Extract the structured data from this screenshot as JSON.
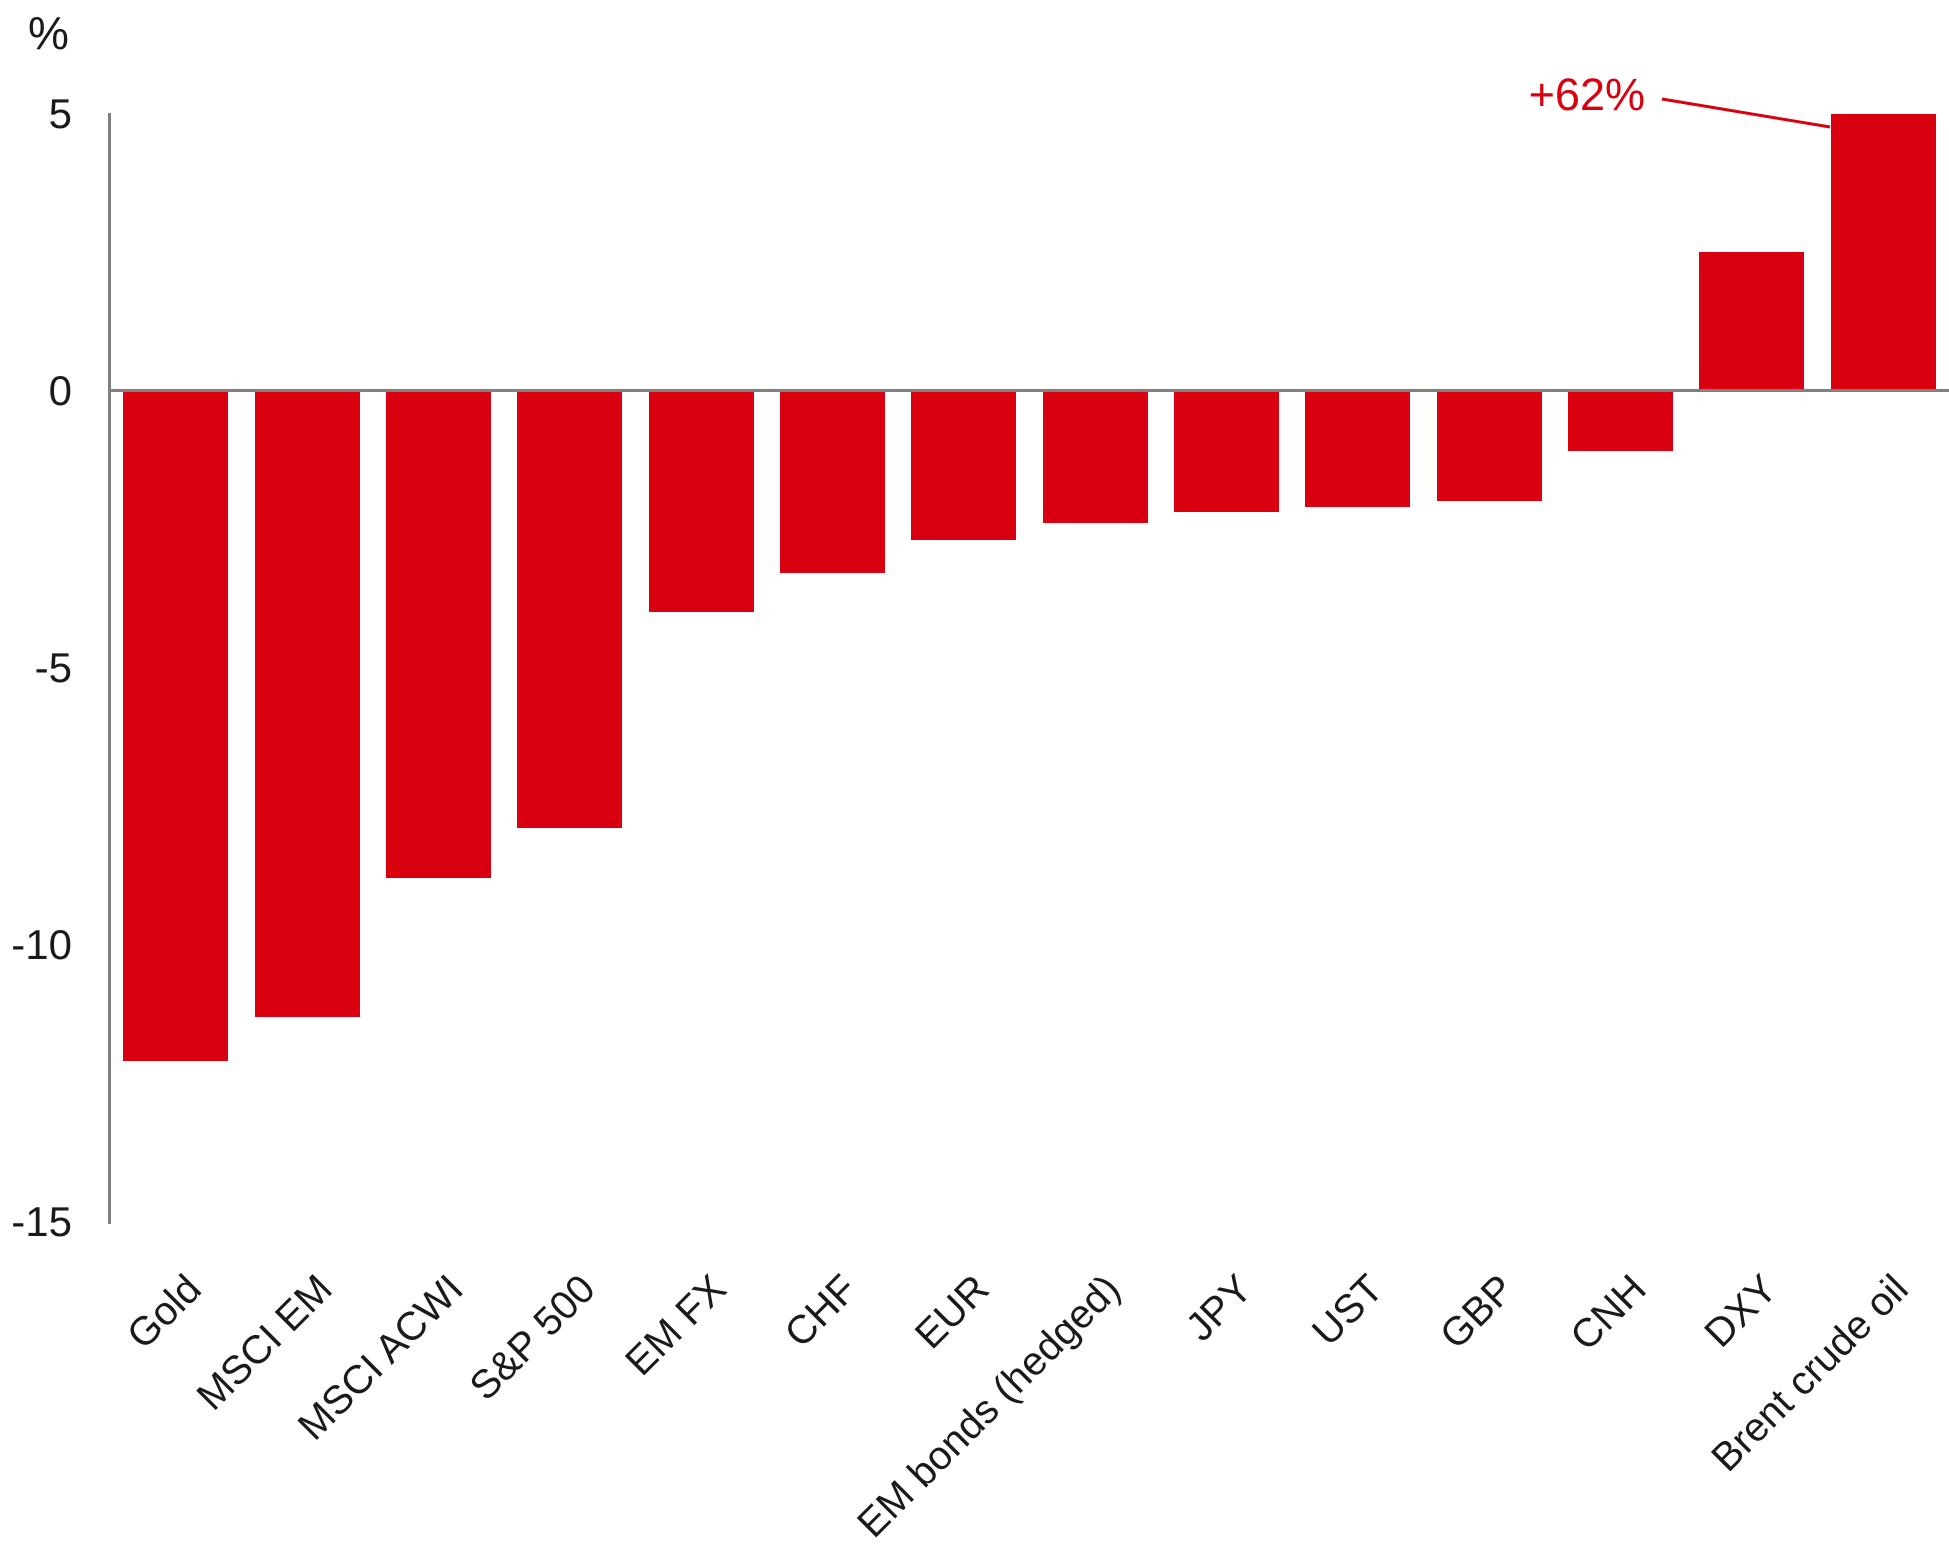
{
  "chart_data": {
    "type": "bar",
    "title": "",
    "unit_label": "%",
    "categories": [
      "Gold",
      "MSCI EM",
      "MSCI ACWI",
      "S&P 500",
      "EM FX",
      "CHF",
      "EUR",
      "EM bonds (hedged)",
      "JPY",
      "UST",
      "GBP",
      "CNH",
      "DXY",
      "Brent crude oil"
    ],
    "values": [
      -12.1,
      -11.3,
      -8.8,
      -7.9,
      -4.0,
      -3.3,
      -2.7,
      -2.4,
      -2.2,
      -2.1,
      -2.0,
      -1.1,
      2.5,
      62
    ],
    "clip_max": 5,
    "yticks": [
      5,
      0,
      -5,
      -10,
      -15
    ],
    "ylim": [
      -15,
      5
    ],
    "grid": "off",
    "legend": "none",
    "annotation": {
      "text": "+62%",
      "target": "Brent crude oil"
    },
    "colors": {
      "bar": "#d9000f",
      "annotation": "#d9000f",
      "axis": "#808080",
      "text": "#1a1a1a"
    }
  }
}
